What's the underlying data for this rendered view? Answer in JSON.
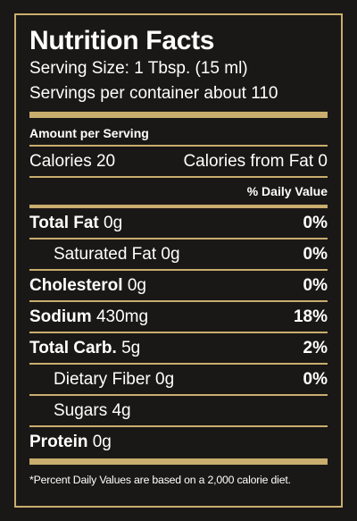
{
  "title": "Nutrition Facts",
  "serving_size": "Serving Size: 1 Tbsp. (15 ml)",
  "servings_per_container": "Servings per container about 110",
  "amount_per_serving": "Amount per Serving",
  "calories": "Calories 20",
  "calories_from_fat": "Calories from Fat 0",
  "daily_value_header": "% Daily Value",
  "nutrients": [
    {
      "name": "Total Fat",
      "amount": "0g",
      "dv": "0%",
      "bold": true
    },
    {
      "name": "Saturated Fat",
      "amount": "0g",
      "dv": "0%",
      "bold": false
    },
    {
      "name": "Cholesterol",
      "amount": "0g",
      "dv": "0%",
      "bold": true
    },
    {
      "name": "Sodium",
      "amount": "430mg",
      "dv": "18%",
      "bold": true
    },
    {
      "name": "Total Carb.",
      "amount": "5g",
      "dv": "2%",
      "bold": true
    },
    {
      "name": "Dietary Fiber",
      "amount": "0g",
      "dv": "0%",
      "bold": false
    },
    {
      "name": "Sugars",
      "amount": "4g",
      "dv": "",
      "bold": false
    },
    {
      "name": "Protein",
      "amount": "0g",
      "dv": "",
      "bold": true
    }
  ],
  "footnote": "*Percent Daily Values are based on a 2,000 calorie diet.",
  "colors": {
    "background": "#1a1816",
    "accent": "#c9ad6e",
    "text": "#ffffff"
  }
}
